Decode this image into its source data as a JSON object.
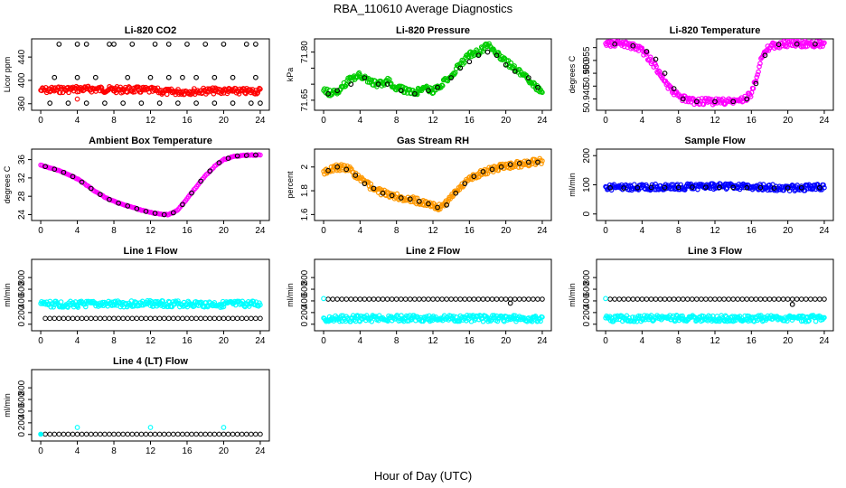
{
  "figure": {
    "title": "RBA_110610  Average Diagnostics",
    "xlabel": "Hour of Day (UTC)"
  },
  "chart_data": [
    {
      "id": "co2",
      "type": "scatter",
      "title": "Li-820 CO2",
      "ylabel": "Licor ppm",
      "xlim": [
        -0.6,
        24.6
      ],
      "ylim": [
        355,
        465
      ],
      "xticks": [
        0,
        4,
        8,
        12,
        16,
        20,
        24
      ],
      "yticks": [
        360,
        400,
        440
      ],
      "series": [
        {
          "name": "mean",
          "color": "#ff0000",
          "style": "band",
          "x": [
            0,
            2,
            4,
            6,
            8,
            10,
            12,
            14,
            16,
            18,
            20,
            22,
            24
          ],
          "y": [
            383,
            384,
            385,
            385,
            384,
            384,
            383,
            380,
            381,
            382,
            382,
            381,
            382
          ]
        },
        {
          "name": "min",
          "color": "#000000",
          "style": "open",
          "x": [
            1,
            3,
            5,
            7,
            9,
            11,
            13,
            15,
            17,
            19,
            21,
            23,
            24
          ],
          "y": [
            361,
            361,
            361,
            361,
            361,
            361,
            361,
            361,
            361,
            361,
            361,
            361,
            361
          ]
        },
        {
          "name": "max",
          "color": "#000000",
          "style": "open",
          "x": [
            2,
            4,
            5,
            7.5,
            8,
            10,
            12.5,
            14,
            16,
            18,
            20,
            22.5,
            23.5
          ],
          "y": [
            462,
            462,
            462,
            462,
            462,
            462,
            462,
            462,
            462,
            462,
            462,
            462,
            462
          ]
        },
        {
          "name": "other",
          "color": "#000000",
          "style": "open",
          "x": [
            1.5,
            4,
            6,
            9.5,
            12,
            14,
            15.5,
            17,
            19,
            21,
            23.5
          ],
          "y": [
            405,
            405,
            405,
            405,
            405,
            405,
            405,
            405,
            405,
            405,
            405
          ]
        },
        {
          "name": "outlier",
          "color": "#ff0000",
          "style": "open",
          "x": [
            4
          ],
          "y": [
            368
          ]
        }
      ]
    },
    {
      "id": "pressure",
      "type": "scatter",
      "title": "Li-820 Pressure",
      "ylabel": "kPa",
      "xlim": [
        -0.6,
        24.6
      ],
      "ylim": [
        71.63,
        71.83
      ],
      "xticks": [
        0,
        4,
        8,
        12,
        16,
        20,
        24
      ],
      "yticks": [
        71.65,
        71.7,
        71.75,
        71.8
      ],
      "yticklabels": [
        "71.65",
        "",
        "",
        "71.80"
      ],
      "series": [
        {
          "name": "band",
          "color": "#00cc00",
          "style": "band",
          "x": [
            0,
            1,
            2,
            3,
            4,
            5,
            6,
            7,
            8,
            9,
            10,
            11,
            12,
            13,
            14,
            15,
            16,
            17,
            18,
            19,
            20,
            21,
            22,
            23,
            24
          ],
          "y": [
            71.68,
            71.67,
            71.69,
            71.72,
            71.73,
            71.71,
            71.7,
            71.71,
            71.69,
            71.68,
            71.67,
            71.69,
            71.68,
            71.7,
            71.73,
            71.76,
            71.79,
            71.8,
            71.82,
            71.8,
            71.77,
            71.75,
            71.73,
            71.7,
            71.67
          ]
        },
        {
          "name": "mean",
          "color": "#000000",
          "style": "open",
          "x": [
            0.5,
            1.5,
            3,
            4.5,
            6,
            7,
            8.5,
            10,
            11.5,
            12.5,
            14,
            15,
            16,
            17,
            18,
            19,
            20,
            21,
            22.5,
            23.5
          ],
          "y": [
            71.67,
            71.68,
            71.7,
            71.72,
            71.7,
            71.7,
            71.68,
            71.67,
            71.68,
            71.69,
            71.72,
            71.75,
            71.77,
            71.79,
            71.8,
            71.79,
            71.76,
            71.74,
            71.72,
            71.69
          ]
        }
      ]
    },
    {
      "id": "temp",
      "type": "scatter",
      "title": "Li-820 Temperature",
      "ylabel": "degrees C",
      "xlim": [
        -0.6,
        24.6
      ],
      "ylim": [
        50.937,
        50.962
      ],
      "xticks": [
        0,
        4,
        8,
        12,
        16,
        20,
        24
      ],
      "yticks": [
        50.94,
        50.945,
        50.95,
        50.955,
        50.96
      ],
      "yticklabels": [
        "50.940",
        "",
        "50.950",
        "50.955",
        ""
      ],
      "series": [
        {
          "name": "band",
          "color": "#ff00ff",
          "style": "band",
          "x": [
            0,
            2,
            3,
            4,
            5,
            6,
            7,
            8,
            9,
            10,
            12,
            14,
            15,
            16,
            16.5,
            17,
            18,
            20,
            22,
            24
          ],
          "y": [
            50.9615,
            50.9615,
            50.9605,
            50.959,
            50.955,
            50.95,
            50.944,
            50.941,
            50.9395,
            50.939,
            50.939,
            50.939,
            50.9395,
            50.942,
            50.948,
            50.955,
            50.9605,
            50.9615,
            50.9615,
            50.9615
          ]
        },
        {
          "name": "mean",
          "color": "#000000",
          "style": "open",
          "x": [
            1,
            3,
            4.5,
            5.5,
            6.5,
            7.5,
            8.5,
            10,
            12,
            14,
            15.5,
            16.5,
            17.5,
            19,
            21,
            23
          ],
          "y": [
            50.9614,
            50.9607,
            50.9585,
            50.9555,
            50.95,
            50.944,
            50.94,
            50.939,
            50.939,
            50.939,
            50.94,
            50.946,
            50.957,
            50.9612,
            50.9614,
            50.9614
          ]
        }
      ]
    },
    {
      "id": "ambient",
      "type": "scatter",
      "title": "Ambient Box Temperature",
      "ylabel": "degrees C",
      "xlim": [
        -0.6,
        24.6
      ],
      "ylim": [
        23.5,
        37.5
      ],
      "xticks": [
        0,
        4,
        8,
        12,
        16,
        20,
        24
      ],
      "yticks": [
        24,
        28,
        32,
        36
      ],
      "series": [
        {
          "name": "band",
          "color": "#ff00ff",
          "style": "line",
          "x": [
            0,
            1,
            2,
            3,
            4,
            5,
            6,
            7,
            8,
            9,
            10,
            11,
            12,
            13,
            14,
            15,
            16,
            17,
            18,
            19,
            20,
            21,
            22,
            23,
            24
          ],
          "y": [
            34.8,
            34.2,
            33.6,
            32.8,
            31.8,
            30.4,
            29.0,
            27.8,
            26.9,
            26.2,
            25.6,
            25.0,
            24.5,
            24.1,
            24.0,
            25.0,
            27.5,
            30.0,
            32.5,
            34.5,
            36.0,
            36.6,
            36.9,
            37.0,
            37.0
          ]
        },
        {
          "name": "mean",
          "color": "#000000",
          "style": "open",
          "x": [
            0.5,
            1.5,
            2.5,
            3.5,
            4.5,
            5.5,
            6.5,
            7.5,
            8.5,
            9.5,
            10.5,
            11.5,
            12.5,
            13.5,
            14.5,
            15.5,
            16.5,
            17.5,
            18.5,
            19.5,
            20.5,
            21.5,
            22.5,
            23.5
          ],
          "y": [
            34.5,
            33.9,
            33.2,
            32.3,
            31.1,
            29.7,
            28.4,
            27.3,
            26.5,
            25.9,
            25.3,
            24.7,
            24.3,
            24.0,
            24.4,
            26.2,
            28.7,
            31.3,
            33.5,
            35.3,
            36.3,
            36.8,
            36.9,
            37.0
          ]
        }
      ]
    },
    {
      "id": "rh",
      "type": "scatter",
      "title": "Gas Stream RH",
      "ylabel": "percent",
      "xlim": [
        -0.6,
        24.6
      ],
      "ylim": [
        1.58,
        2.12
      ],
      "xticks": [
        0,
        4,
        8,
        12,
        16,
        20,
        24
      ],
      "yticks": [
        1.6,
        1.8,
        2.0
      ],
      "series": [
        {
          "name": "band",
          "color": "#ff9900",
          "style": "band",
          "x": [
            0,
            1,
            2,
            3,
            4,
            5,
            6,
            7,
            8,
            9,
            10,
            11,
            12,
            13,
            14,
            15,
            16,
            17,
            18,
            19,
            20,
            21,
            22,
            23,
            24
          ],
          "y": [
            1.96,
            1.99,
            2.0,
            1.97,
            1.9,
            1.84,
            1.8,
            1.77,
            1.75,
            1.74,
            1.72,
            1.7,
            1.67,
            1.66,
            1.75,
            1.83,
            1.9,
            1.94,
            1.97,
            1.99,
            2.01,
            2.02,
            2.03,
            2.04,
            2.05
          ]
        },
        {
          "name": "mean",
          "color": "#000000",
          "style": "open",
          "x": [
            0.5,
            1.5,
            2.5,
            3.5,
            4.5,
            5.5,
            6.5,
            7.5,
            8.5,
            9.5,
            10.5,
            11.5,
            12.5,
            13.5,
            14.5,
            15.5,
            16.5,
            17.5,
            18.5,
            19.5,
            20.5,
            21.5,
            22.5,
            23.5
          ],
          "y": [
            1.97,
            2.0,
            1.98,
            1.93,
            1.86,
            1.82,
            1.78,
            1.76,
            1.74,
            1.73,
            1.71,
            1.69,
            1.66,
            1.68,
            1.78,
            1.86,
            1.92,
            1.96,
            1.98,
            2.0,
            2.02,
            2.03,
            2.04,
            2.04
          ]
        }
      ]
    },
    {
      "id": "sample",
      "type": "scatter",
      "title": "Sample Flow",
      "ylabel": "ml/min",
      "xlim": [
        -0.6,
        24.6
      ],
      "ylim": [
        -10,
        210
      ],
      "xticks": [
        0,
        4,
        8,
        12,
        16,
        20,
        24
      ],
      "yticks": [
        0,
        100,
        200
      ],
      "series": [
        {
          "name": "band",
          "color": "#0000ff",
          "style": "band",
          "x": [
            0,
            4,
            8,
            12,
            16,
            20,
            24
          ],
          "y": [
            92,
            91,
            93,
            94,
            92,
            90,
            91
          ]
        },
        {
          "name": "mean",
          "color": "#000000",
          "style": "open",
          "x": [
            0.5,
            2,
            3.5,
            5,
            6.5,
            8,
            9.5,
            11,
            12.5,
            14,
            15.5,
            17,
            18.5,
            20,
            21.5,
            23.5
          ],
          "y": [
            90,
            89,
            90,
            91,
            90,
            91,
            92,
            92,
            91,
            91,
            90,
            90,
            89,
            89,
            90,
            90
          ]
        }
      ]
    },
    {
      "id": "line1",
      "type": "scatter",
      "title": "Line 1 Flow",
      "ylabel": "ml/min",
      "xlim": [
        -0.6,
        24.6
      ],
      "ylim": [
        -50,
        1050
      ],
      "xticks": [
        0,
        4,
        8,
        12,
        16,
        20,
        24
      ],
      "yticks": [
        0,
        200,
        400,
        600,
        800
      ],
      "series": [
        {
          "name": "upper",
          "color": "#00ffff",
          "style": "band",
          "x": [
            0,
            4,
            8,
            12,
            16,
            20,
            24
          ],
          "y": [
            345,
            340,
            345,
            355,
            348,
            342,
            345
          ]
        },
        {
          "name": "lower",
          "color": "#000000",
          "style": "dense",
          "x": [
            0.5,
            24
          ],
          "y": [
            100,
            100
          ]
        },
        {
          "name": "spikes",
          "color": "#00ffff",
          "style": "open",
          "x": [
            4,
            12,
            20
          ],
          "y": [
            310,
            320,
            300
          ]
        }
      ]
    },
    {
      "id": "line2",
      "type": "scatter",
      "title": "Line 2 Flow",
      "ylabel": "ml/min",
      "xlim": [
        -0.6,
        24.6
      ],
      "ylim": [
        -50,
        1050
      ],
      "xticks": [
        0,
        4,
        8,
        12,
        16,
        20,
        24
      ],
      "yticks": [
        0,
        200,
        400,
        600,
        800
      ],
      "series": [
        {
          "name": "upper",
          "color": "#000000",
          "style": "dense",
          "x": [
            0.5,
            24
          ],
          "y": [
            430,
            430
          ]
        },
        {
          "name": "lower",
          "color": "#00ffff",
          "style": "band",
          "x": [
            0,
            4,
            8,
            12,
            16,
            20,
            24
          ],
          "y": [
            100,
            98,
            102,
            104,
            100,
            98,
            100
          ]
        },
        {
          "name": "start",
          "color": "#00ffff",
          "style": "open",
          "x": [
            0
          ],
          "y": [
            440
          ]
        },
        {
          "name": "dip",
          "color": "#000000",
          "style": "open",
          "x": [
            20.5
          ],
          "y": [
            360
          ]
        }
      ]
    },
    {
      "id": "line3",
      "type": "scatter",
      "title": "Line 3 Flow",
      "ylabel": "ml/min",
      "xlim": [
        -0.6,
        24.6
      ],
      "ylim": [
        -50,
        1050
      ],
      "xticks": [
        0,
        4,
        8,
        12,
        16,
        20,
        24
      ],
      "yticks": [
        0,
        200,
        400,
        600,
        800
      ],
      "series": [
        {
          "name": "upper",
          "color": "#000000",
          "style": "dense",
          "x": [
            0.5,
            24
          ],
          "y": [
            430,
            430
          ]
        },
        {
          "name": "lower",
          "color": "#00ffff",
          "style": "band",
          "x": [
            0,
            4,
            8,
            12,
            16,
            20,
            24
          ],
          "y": [
            100,
            98,
            102,
            104,
            100,
            98,
            100
          ]
        },
        {
          "name": "start",
          "color": "#00ffff",
          "style": "open",
          "x": [
            0
          ],
          "y": [
            440
          ]
        },
        {
          "name": "dip",
          "color": "#000000",
          "style": "open",
          "x": [
            20.5
          ],
          "y": [
            340
          ]
        }
      ]
    },
    {
      "id": "line4",
      "type": "scatter",
      "title": "Line 4 (LT) Flow",
      "ylabel": "ml/min",
      "xlim": [
        -0.6,
        24.6
      ],
      "ylim": [
        -50,
        1050
      ],
      "xticks": [
        0,
        4,
        8,
        12,
        16,
        20,
        24
      ],
      "yticks": [
        0,
        200,
        400,
        600,
        800
      ],
      "series": [
        {
          "name": "base",
          "color": "#000000",
          "style": "dense",
          "x": [
            0.5,
            24
          ],
          "y": [
            5,
            5
          ]
        },
        {
          "name": "start",
          "color": "#00ffff",
          "style": "filled",
          "x": [
            0
          ],
          "y": [
            5
          ]
        },
        {
          "name": "spikes",
          "color": "#00ffff",
          "style": "open",
          "x": [
            4,
            12,
            20
          ],
          "y": [
            120,
            120,
            120
          ]
        }
      ]
    }
  ]
}
